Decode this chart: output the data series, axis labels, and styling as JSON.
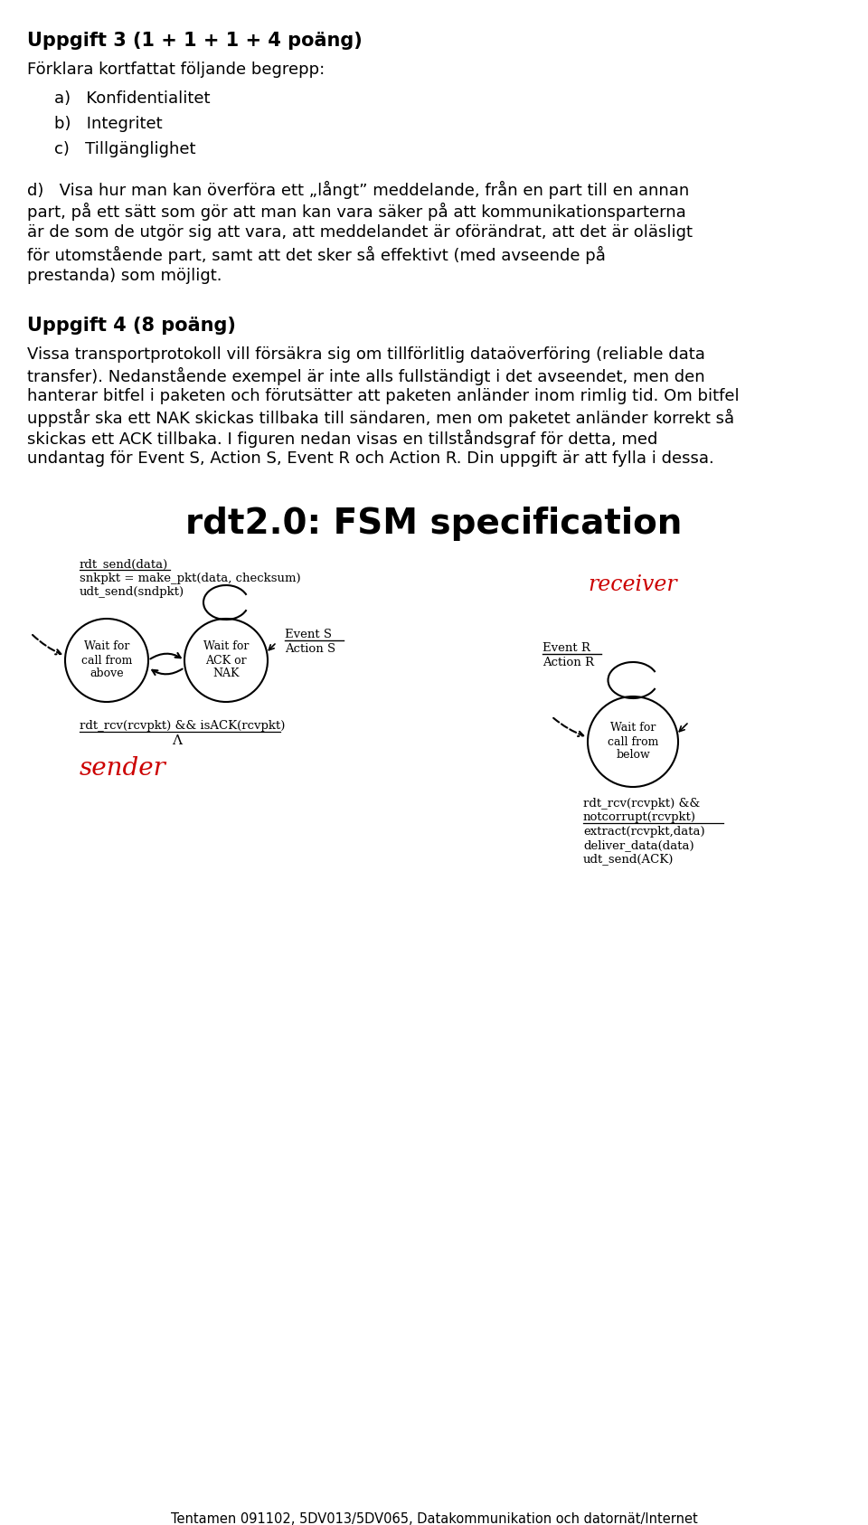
{
  "title3": "Uppgift 3 (1 + 1 + 1 + 4 poäng)",
  "text3_intro": "Förklara kortfattat följande begrepp:",
  "items3_a": "a)   Konfidentialitet",
  "items3_b": "b)   Integritet",
  "items3_c": "c)   Tillgänglighet",
  "text3d": "d)   Visa hur man kan överföra ett „långt” meddelande, från en part till en annan\n      part, på ett sätt som gör att man kan vara säker på att kommunikationsparterna\n      är de som de utgör sig att vara, att meddelandet är oförändrat, att det är oläsligt\n      för utomstående part, samt att det sker så effektivt (med avseende på\n      prestanda) som möjligt.",
  "title4": "Uppgift 4 (8 poäng)",
  "text4": "Vissa transportprotokoll vill försäkra sig om tillförlitlig dataöverföring (reliable data\ntransfer). Nedanstående exempel är inte alls fullständigt i det avseendet, men den\nhanterar bitfel i paketen och förutsätter att paketen anländer inom rimlig tid. Om bitfel\nuppstår ska ett NAK skickas tillbaka till sändaren, men om paketet anländer korrekt så\nskickas ett ACK tillbaka. I figuren nedan visas en tillståndsgraf för detta, med\nundantag för Event S, Action S, Event R och Action R. Din uppgift är att fylla i dessa.",
  "fsm_title": "rdt2.0: FSM specification",
  "footer": "Tentamen 091102, 5DV013/5DV065, Datakommunikation och datornät/Internet",
  "bg_color": "#ffffff",
  "text_color": "#000000",
  "red_color": "#cc0000",
  "sender_label1": "rdt_send(data)",
  "sender_label2": "snkpkt = make_pkt(data, checksum)",
  "sender_label3": "udt_send(sndpkt)",
  "circle1_text": "Wait for\ncall from\nabove",
  "circle2_text": "Wait for\nACK or\nNAK",
  "circle3_text": "Wait for\ncall from\nbelow",
  "event_s": "Event S",
  "action_s": "Action S",
  "event_r": "Event R",
  "action_r": "Action R",
  "sender_bottom1": "rdt_rcv(rcvpkt) && isACK(rcvpkt)",
  "sender_bottom2": "Λ",
  "sender_word": "sender",
  "receiver_word": "receiver",
  "rcv_line1": "rdt_rcv(rcvpkt) &&",
  "rcv_line2": "notcorrupt(rcvpkt)",
  "rcv_line3": "extract(rcvpkt,data)",
  "rcv_line4": "deliver_data(data)",
  "rcv_line5": "udt_send(ACK)"
}
